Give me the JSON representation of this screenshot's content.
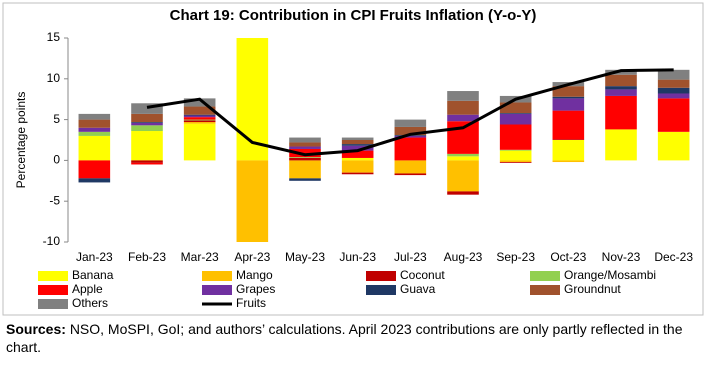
{
  "chart_data": {
    "type": "stacked_bar",
    "title": "Chart 19: Contribution in CPI Fruits Inflation (Y-o-Y)",
    "y_label": "Percentage points",
    "categories": [
      "Jan-23",
      "Feb-23",
      "Mar-23",
      "Apr-23",
      "May-23",
      "Jun-23",
      "Jul-23",
      "Aug-23",
      "Sep-23",
      "Oct-23",
      "Nov-23",
      "Dec-23"
    ],
    "ylim": [
      -10,
      15
    ],
    "yticks": [
      -10,
      -5,
      0,
      5,
      10,
      15
    ],
    "series": [
      {
        "name": "Banana",
        "color": "#ffff00",
        "values": [
          3.0,
          3.6,
          4.5,
          15,
          0,
          0.3,
          0,
          0.5,
          1.2,
          2.5,
          3.8,
          3.5
        ]
      },
      {
        "name": "Mango",
        "color": "#ffc000",
        "values": [
          0,
          0,
          0.2,
          -10,
          -2.2,
          -1.5,
          -1.6,
          -3.8,
          -0.2,
          -0.2,
          0,
          0
        ]
      },
      {
        "name": "Coconut",
        "color": "#c00000",
        "values": [
          0,
          -0.3,
          0.2,
          0,
          0.3,
          -0.2,
          -0.2,
          -0.4,
          -0.1,
          0.1,
          0,
          0
        ]
      },
      {
        "name": "Orange/Mosambi",
        "color": "#92d050",
        "values": [
          0.5,
          0.7,
          0.1,
          0,
          0.1,
          0,
          0,
          0.3,
          0.1,
          0,
          0,
          0
        ]
      },
      {
        "name": "Apple",
        "color": "#ff0000",
        "values": [
          -2.2,
          -0.2,
          0.3,
          0,
          1.0,
          0.9,
          2.8,
          4.0,
          3.1,
          3.5,
          4.1,
          4.1
        ]
      },
      {
        "name": "Grapes",
        "color": "#7030a0",
        "values": [
          0.5,
          0.3,
          0.2,
          0,
          0.3,
          0.6,
          0.2,
          0.8,
          1.3,
          1.5,
          0.8,
          0.6
        ]
      },
      {
        "name": "Guava",
        "color": "#1f3864",
        "values": [
          -0.5,
          0.1,
          0.1,
          0,
          -0.3,
          0.2,
          0.1,
          0,
          0.1,
          0.2,
          0.4,
          0.7
        ]
      },
      {
        "name": "Groundnut",
        "color": "#a0522d",
        "values": [
          1.0,
          1.0,
          1.0,
          0,
          0.5,
          0.5,
          1.0,
          1.7,
          1.3,
          1.3,
          1.4,
          1.0
        ]
      },
      {
        "name": "Others",
        "color": "#808080",
        "values": [
          0.7,
          1.3,
          1.0,
          0,
          0.6,
          0.3,
          0.9,
          1.2,
          0.8,
          0.5,
          0.6,
          1.2
        ]
      }
    ],
    "line": {
      "name": "Fruits",
      "color": "#000000",
      "values": [
        null,
        6.5,
        7.5,
        2.2,
        0.7,
        1.2,
        3.2,
        4.0,
        7.5,
        9.3,
        11.0,
        11.1
      ]
    },
    "note": {
      "label": "Sources:",
      "text": "NSO, MoSPI, GoI; and authors’ calculations. April 2023 contributions are only partly reflected in the chart."
    }
  }
}
